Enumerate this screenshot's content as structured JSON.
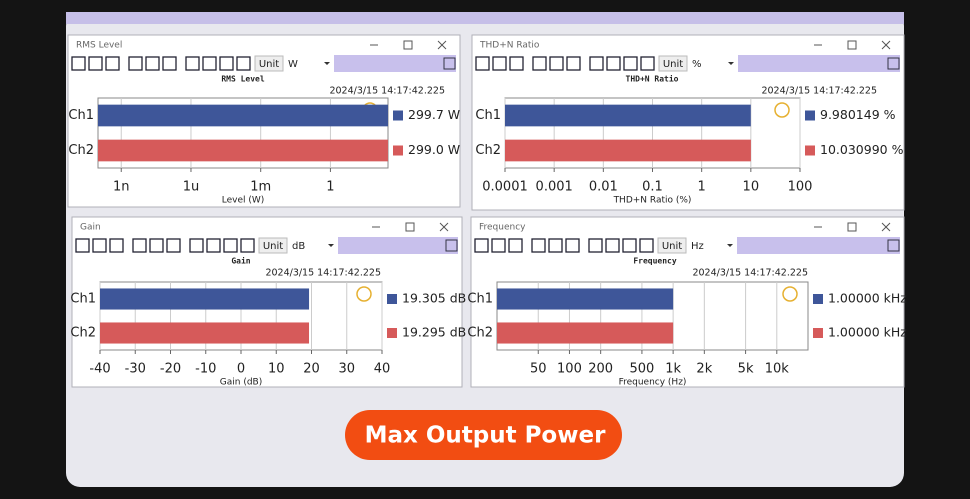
{
  "windows": [
    {
      "title": "RMS Level",
      "unit_button": "Unit",
      "unit": "W"
    },
    {
      "title": "THD+N Ratio",
      "unit_button": "Unit",
      "unit": "%"
    },
    {
      "title": "Gain",
      "unit_button": "Unit",
      "unit": "dB"
    },
    {
      "title": "Frequency",
      "unit_button": "Unit",
      "unit": "Hz"
    }
  ],
  "chart_data": [
    {
      "type": "bar",
      "orientation": "horizontal",
      "title": "RMS Level",
      "timestamp": "2024/3/15 14:17:42.225",
      "x_label": "Level (W)",
      "xscale": "log",
      "xlim": [
        1e-10,
        300
      ],
      "xticks": [
        {
          "value": 1e-09,
          "label": "1n"
        },
        {
          "value": 1e-06,
          "label": "1u"
        },
        {
          "value": 0.001,
          "label": "1m"
        },
        1
      ],
      "grid": true,
      "categories": [
        "Ch1",
        "Ch2"
      ],
      "colors": [
        "#3e5699",
        "#d65a5a"
      ],
      "values": [
        299.7,
        299.0
      ],
      "value_labels": [
        "299.7 W",
        "299.0 W"
      ]
    },
    {
      "type": "bar",
      "orientation": "horizontal",
      "title": "THD+N Ratio",
      "timestamp": "2024/3/15 14:17:42.225",
      "x_label": "THD+N Ratio (%)",
      "xscale": "log",
      "xlim": [
        0.0001,
        100
      ],
      "xticks": [
        0.0001,
        0.001,
        0.01,
        0.1,
        1,
        10,
        100
      ],
      "grid": true,
      "categories": [
        "Ch1",
        "Ch2"
      ],
      "colors": [
        "#3e5699",
        "#d65a5a"
      ],
      "values": [
        9.980149,
        10.03099
      ],
      "value_labels": [
        "9.980149 %",
        "10.030990 %"
      ]
    },
    {
      "type": "bar",
      "orientation": "horizontal",
      "title": "Gain",
      "timestamp": "2024/3/15 14:17:42.225",
      "x_label": "Gain (dB)",
      "xscale": "linear",
      "xlim": [
        -40,
        40
      ],
      "xticks": [
        -40,
        -30,
        -20,
        -10,
        0,
        10,
        20,
        30,
        40
      ],
      "grid": true,
      "categories": [
        "Ch1",
        "Ch2"
      ],
      "colors": [
        "#3e5699",
        "#d65a5a"
      ],
      "values": [
        19.305,
        19.295
      ],
      "value_labels": [
        "19.305 dB",
        "19.295 dB"
      ]
    },
    {
      "type": "bar",
      "orientation": "horizontal",
      "title": "Frequency",
      "timestamp": "2024/3/15 14:17:42.225",
      "x_label": "Frequency (Hz)",
      "xscale": "log",
      "xlim": [
        20,
        20000
      ],
      "xticks": [
        50,
        100,
        200,
        500,
        {
          "value": 1000,
          "label": "1k"
        },
        {
          "value": 2000,
          "label": "2k"
        },
        {
          "value": 5000,
          "label": "5k"
        },
        {
          "value": 10000,
          "label": "10k"
        }
      ],
      "grid": true,
      "categories": [
        "Ch1",
        "Ch2"
      ],
      "colors": [
        "#3e5699",
        "#d65a5a"
      ],
      "values": [
        1000,
        1000
      ],
      "value_labels": [
        "1.00000 kHz",
        "1.00000 kHz"
      ]
    }
  ],
  "banner": "Max Output Power"
}
